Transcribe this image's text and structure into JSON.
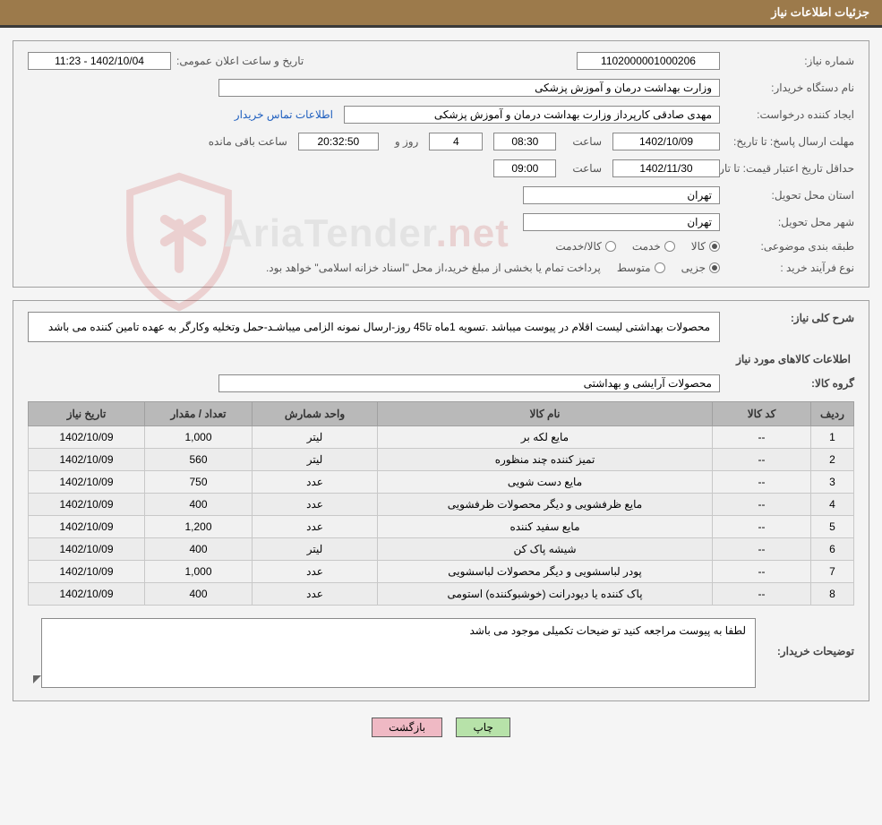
{
  "header": {
    "title": "جزئیات اطلاعات نیاز"
  },
  "fields": {
    "need_no_label": "شماره نیاز:",
    "need_no": "1102000001000206",
    "announce_label": "تاریخ و ساعت اعلان عمومی:",
    "announce_value": "1402/10/04 - 11:23",
    "buyer_org_label": "نام دستگاه خریدار:",
    "buyer_org": "وزارت بهداشت  درمان و آموزش پزشكی",
    "requester_label": "ایجاد کننده درخواست:",
    "requester": "مهدی صادقی کارپرداز وزارت بهداشت  درمان و آموزش پزشكی",
    "contact_link": "اطلاعات تماس خریدار",
    "deadline_label": "مهلت ارسال پاسخ: تا تاریخ:",
    "deadline_date": "1402/10/09",
    "hour_label": "ساعت",
    "deadline_time": "08:30",
    "days_val": "4",
    "days_and": "روز و",
    "countdown": "20:32:50",
    "remain": "ساعت باقی مانده",
    "min_valid_label": "حداقل تاریخ اعتبار قیمت: تا تاریخ:",
    "min_valid_date": "1402/11/30",
    "min_valid_time": "09:00",
    "province_label": "استان محل تحویل:",
    "province": "تهران",
    "city_label": "شهر محل تحویل:",
    "city": "تهران",
    "class_label": "طبقه بندی موضوعی:",
    "class_goods": "کالا",
    "class_service": "خدمت",
    "class_goods_service": "کالا/خدمت",
    "proc_label": "نوع فرآیند خرید :",
    "proc_partial": "جزیی",
    "proc_medium": "متوسط",
    "proc_note": "پرداخت تمام یا بخشی از مبلغ خرید،از محل \"اسناد خزانه اسلامی\" خواهد بود."
  },
  "need": {
    "overall_label": "شرح کلی نیاز:",
    "overall_text": "محصولات بهداشتی لیست اقلام در پیوست میباشد .تسویه 1ماه تا45 روز-ارسال نمونه الزامی میباشـد-حمل وتخلیه وکارگر به عهده تامین کننده می باشد",
    "items_title": "اطلاعات کالاهای مورد نیاز",
    "group_label": "گروه کالا:",
    "group_value": "محصولات آرایشی و بهداشتی"
  },
  "table": {
    "headers": [
      "ردیف",
      "کد کالا",
      "نام کالا",
      "واحد شمارش",
      "تعداد / مقدار",
      "تاریخ نیاز"
    ],
    "rows": [
      [
        "1",
        "--",
        "مایع لکه بر",
        "لیتر",
        "1,000",
        "1402/10/09"
      ],
      [
        "2",
        "--",
        "تمیز کننده چند منظوره",
        "لیتر",
        "560",
        "1402/10/09"
      ],
      [
        "3",
        "--",
        "مایع دست شویی",
        "عدد",
        "750",
        "1402/10/09"
      ],
      [
        "4",
        "--",
        "مایع ظرفشویی و دیگر محصولات ظرفشویی",
        "عدد",
        "400",
        "1402/10/09"
      ],
      [
        "5",
        "--",
        "مایع سفید کننده",
        "عدد",
        "1,200",
        "1402/10/09"
      ],
      [
        "6",
        "--",
        "شیشه پاک کن",
        "لیتر",
        "400",
        "1402/10/09"
      ],
      [
        "7",
        "--",
        "پودر لباسشویی و دیگر محصولات لباسشویی",
        "عدد",
        "1,000",
        "1402/10/09"
      ],
      [
        "8",
        "--",
        "پاک کننده یا دیودرانت (خوشبوکننده) استومی",
        "عدد",
        "400",
        "1402/10/09"
      ]
    ]
  },
  "buyer_note": {
    "label": "توضیحات خریدار:",
    "text": "لطفا به پیوست مراجعه کنید تو ضیحات تکمیلی موجود می باشد"
  },
  "buttons": {
    "print": "چاپ",
    "back": "بازگشت"
  },
  "watermark": {
    "text_a": "AriaTender",
    "text_b": ".net"
  },
  "colors": {
    "band": "#9c7a4b",
    "band_border": "#3a3a3a",
    "panel_border": "#a0a0a0",
    "panel_bg": "#f3f3f3",
    "field_border": "#8a8a8a",
    "th_bg": "#b9b9b9",
    "td_bg": "#f1f1f1",
    "link": "#1f5fbf",
    "btn_print": "#b7e2a9",
    "btn_back": "#efb9c4",
    "shield_stroke": "#c62828"
  }
}
